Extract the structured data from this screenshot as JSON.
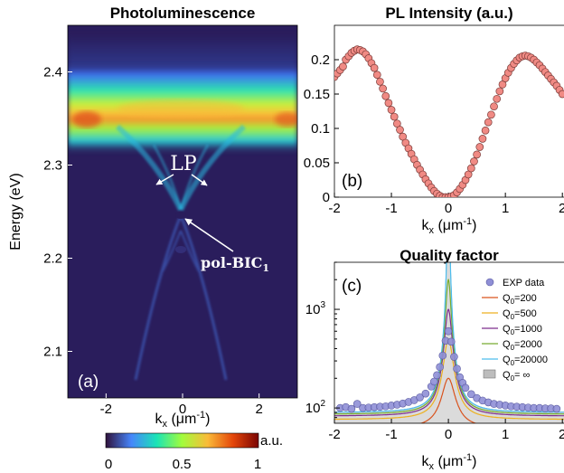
{
  "chart_data": [
    {
      "id": "a",
      "type": "heatmap",
      "title": "Photoluminescence",
      "panel_label": "(a)",
      "xlabel": "k",
      "xlabel_sub": "x",
      "xlabel_unit": " (μm",
      "xlabel_sup": "-1",
      "xlabel_close": ")",
      "ylabel": "Energy (eV)",
      "xlim": [
        -3,
        3
      ],
      "ylim": [
        2.05,
        2.45
      ],
      "xticks": [
        -2,
        0,
        2
      ],
      "yticks": [
        2.1,
        2.2,
        2.3,
        2.4
      ],
      "annotations": [
        {
          "text": "LP",
          "x": 0.0,
          "y": 2.31
        },
        {
          "text": "pol-BIC",
          "sub": "1",
          "x": 1.0,
          "y": 2.195
        }
      ],
      "colorbar": {
        "label": "a.u.",
        "ticks": [
          "0",
          "0.5",
          "1"
        ],
        "colormap": [
          "#30123b",
          "#4686fb",
          "#1ae4b6",
          "#a2fc3c",
          "#fabb39",
          "#e4460a",
          "#7a0403"
        ]
      },
      "background_color": "#2a1d5c"
    },
    {
      "id": "b",
      "type": "scatter",
      "title": "PL Intensity (a.u.)",
      "panel_label": "(b)",
      "xlabel": "k",
      "xlabel_sub": "x",
      "xlabel_unit": " (μm",
      "xlabel_sup": "-1",
      "xlabel_close": ")",
      "xlim": [
        -2,
        2
      ],
      "ylim": [
        0,
        0.25
      ],
      "xticks": [
        "-2",
        "-1",
        "0",
        "1",
        "2"
      ],
      "yticks": [
        "0",
        "0.05",
        "0.1",
        "0.15",
        "0.2"
      ],
      "marker_color": "#f08a84",
      "series": [
        {
          "x": [
            -2.0,
            -1.95,
            -1.9,
            -1.85,
            -1.8,
            -1.75,
            -1.7,
            -1.65,
            -1.6,
            -1.55,
            -1.5,
            -1.45,
            -1.4,
            -1.35,
            -1.3,
            -1.25,
            -1.2,
            -1.15,
            -1.1,
            -1.05,
            -1.0,
            -0.95,
            -0.9,
            -0.85,
            -0.8,
            -0.75,
            -0.7,
            -0.65,
            -0.6,
            -0.55,
            -0.5,
            -0.45,
            -0.4,
            -0.35,
            -0.3,
            -0.25,
            -0.2,
            -0.15,
            -0.1,
            -0.05,
            0.0,
            0.05,
            0.1,
            0.15,
            0.2,
            0.25,
            0.3,
            0.35,
            0.4,
            0.45,
            0.5,
            0.55,
            0.6,
            0.65,
            0.7,
            0.75,
            0.8,
            0.85,
            0.9,
            0.95,
            1.0,
            1.05,
            1.1,
            1.15,
            1.2,
            1.25,
            1.3,
            1.35,
            1.4,
            1.45,
            1.5,
            1.55,
            1.6,
            1.65,
            1.7,
            1.75,
            1.8,
            1.85,
            1.9,
            1.95,
            2.0
          ],
          "values": [
            0.175,
            0.18,
            0.185,
            0.19,
            0.2,
            0.205,
            0.21,
            0.213,
            0.215,
            0.214,
            0.212,
            0.208,
            0.202,
            0.195,
            0.188,
            0.178,
            0.168,
            0.158,
            0.147,
            0.137,
            0.127,
            0.117,
            0.107,
            0.098,
            0.088,
            0.079,
            0.071,
            0.063,
            0.055,
            0.047,
            0.04,
            0.033,
            0.026,
            0.02,
            0.014,
            0.009,
            0.005,
            0.002,
            0.0,
            0.0,
            0.0,
            0.001,
            0.003,
            0.007,
            0.012,
            0.018,
            0.025,
            0.033,
            0.042,
            0.052,
            0.062,
            0.073,
            0.085,
            0.097,
            0.109,
            0.12,
            0.132,
            0.143,
            0.154,
            0.164,
            0.173,
            0.181,
            0.188,
            0.194,
            0.199,
            0.203,
            0.205,
            0.206,
            0.205,
            0.203,
            0.2,
            0.196,
            0.192,
            0.187,
            0.182,
            0.177,
            0.172,
            0.167,
            0.162,
            0.156,
            0.15
          ]
        }
      ]
    },
    {
      "id": "c",
      "type": "line",
      "title": "Quality factor",
      "panel_label": "(c)",
      "xlabel": "k",
      "xlabel_sub": "x",
      "xlabel_unit": " (μm",
      "xlabel_sup": "-1",
      "xlabel_close": ")",
      "yscale": "log",
      "xlim": [
        -2,
        2
      ],
      "ylim": [
        70,
        3000
      ],
      "xticks": [
        "-2",
        "-1",
        "0",
        "1",
        "2"
      ],
      "yticks": [
        {
          "base": "10",
          "exp": "2",
          "value": 100
        },
        {
          "base": "10",
          "exp": "3",
          "value": 1000
        }
      ],
      "series": [
        {
          "name": "EXP data",
          "kind": "scatter",
          "color": "#8f8fd6"
        },
        {
          "name": "Q",
          "sub": "0",
          "suffix": "=200",
          "q0": 200,
          "color": "#d9531e"
        },
        {
          "name": "Q",
          "sub": "0",
          "suffix": "=500",
          "q0": 500,
          "color": "#edb120"
        },
        {
          "name": "Q",
          "sub": "0",
          "suffix": "=1000",
          "q0": 1000,
          "color": "#7e2f8e"
        },
        {
          "name": "Q",
          "sub": "0",
          "suffix": "=2000",
          "q0": 2000,
          "color": "#77ac30"
        },
        {
          "name": "Q",
          "sub": "0",
          "suffix": "=20000",
          "q0": 20000,
          "color": "#4dbeee"
        },
        {
          "name": "Q",
          "sub": "0",
          "suffix": "= ∞",
          "q0": 1000000,
          "kind": "area",
          "color": "#bdbdbd"
        }
      ],
      "exp_data": {
        "x": [
          -1.9,
          -1.8,
          -1.7,
          -1.6,
          -1.5,
          -1.4,
          -1.3,
          -1.2,
          -1.1,
          -1.0,
          -0.9,
          -0.8,
          -0.7,
          -0.6,
          -0.5,
          -0.4,
          -0.3,
          -0.25,
          -0.2,
          -0.15,
          -0.1,
          -0.05,
          0.0,
          0.05,
          0.1,
          0.15,
          0.2,
          0.25,
          0.3,
          0.4,
          0.5,
          0.6,
          0.7,
          0.8,
          0.9,
          1.0,
          1.1,
          1.2,
          1.3,
          1.4,
          1.5,
          1.6,
          1.7,
          1.8,
          1.9
        ],
        "values": [
          100,
          102,
          98,
          110,
          100,
          101,
          102,
          103,
          104,
          106,
          108,
          111,
          115,
          120,
          128,
          140,
          165,
          185,
          215,
          260,
          340,
          480,
          600,
          470,
          330,
          250,
          205,
          180,
          160,
          138,
          126,
          119,
          114,
          110,
          108,
          106,
          104,
          103,
          102,
          101,
          100,
          100,
          99,
          99,
          98
        ]
      }
    }
  ]
}
